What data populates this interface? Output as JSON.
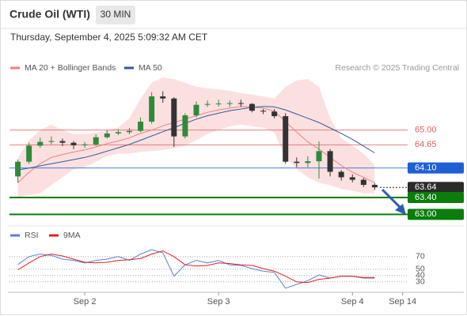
{
  "header": {
    "title": "Crude Oil (WTI)",
    "timeframe": "30 MIN",
    "timestamp": "Thursday, September 4, 2025 5:09:32 AM CET",
    "credit": "Research © 2025 Trading Central"
  },
  "chart_data": [
    {
      "type": "candlestick",
      "x": [
        -12,
        -10,
        -8,
        -6,
        -4,
        -2,
        0,
        2,
        4,
        6,
        8,
        10,
        12,
        14,
        16,
        18,
        20,
        22,
        24,
        26,
        28,
        30,
        32,
        34,
        36,
        38,
        40,
        42,
        44,
        46,
        48,
        50,
        52
      ],
      "open": [
        63.9,
        64.25,
        64.63,
        64.72,
        64.74,
        64.7,
        64.64,
        64.66,
        64.83,
        64.92,
        64.95,
        64.98,
        65.2,
        65.8,
        65.75,
        64.85,
        65.35,
        65.6,
        65.62,
        65.63,
        65.64,
        65.62,
        65.46,
        65.44,
        65.33,
        64.25,
        64.22,
        64.26,
        64.5,
        64.01,
        63.88,
        63.82,
        63.7
      ],
      "high": [
        64.3,
        64.7,
        64.82,
        64.85,
        64.8,
        64.74,
        64.72,
        64.9,
        65.0,
        65.02,
        65.05,
        65.3,
        65.9,
        65.92,
        65.78,
        65.4,
        65.68,
        65.7,
        65.72,
        65.7,
        65.72,
        65.64,
        65.5,
        65.5,
        65.4,
        64.35,
        64.38,
        64.73,
        64.55,
        64.05,
        63.95,
        63.86,
        63.74
      ],
      "low": [
        63.75,
        64.2,
        64.58,
        64.66,
        64.62,
        64.55,
        64.58,
        64.62,
        64.8,
        64.88,
        64.9,
        64.95,
        65.15,
        65.65,
        64.6,
        64.8,
        65.3,
        65.55,
        65.56,
        65.55,
        65.55,
        65.42,
        65.38,
        65.28,
        64.2,
        64.12,
        64.12,
        63.85,
        63.9,
        63.8,
        63.76,
        63.65,
        63.58
      ],
      "close": [
        64.25,
        64.63,
        64.72,
        64.74,
        64.7,
        64.64,
        64.66,
        64.83,
        64.92,
        64.95,
        64.98,
        65.2,
        65.8,
        65.75,
        64.85,
        65.35,
        65.6,
        65.62,
        65.63,
        65.64,
        65.62,
        65.46,
        65.44,
        65.33,
        64.25,
        64.22,
        64.26,
        64.5,
        64.01,
        63.88,
        63.82,
        63.7,
        63.64
      ],
      "up_color": "#2e8b3a",
      "down_color": "#333333",
      "series": [
        {
          "name": "MA 20 + Bollinger Bands",
          "color": "#f08080",
          "band_color": "#fbd5d5",
          "values": [
            63.75,
            64.0,
            64.2,
            64.35,
            64.42,
            64.48,
            64.53,
            64.6,
            64.68,
            64.74,
            64.82,
            64.92,
            65.0,
            65.1,
            65.18,
            65.26,
            65.34,
            65.42,
            65.48,
            65.52,
            65.56,
            65.55,
            65.52,
            65.45,
            65.2,
            64.95,
            64.72,
            64.55,
            64.35,
            64.16,
            64.0,
            63.88,
            63.75
          ],
          "band_upper": [
            64.35,
            64.76,
            65.0,
            65.13,
            65.0,
            64.91,
            64.91,
            64.94,
            65.0,
            65.06,
            65.28,
            65.75,
            66.12,
            66.25,
            66.21,
            66.12,
            66.03,
            65.99,
            65.97,
            65.93,
            65.88,
            65.84,
            65.8,
            65.75,
            66.03,
            66.18,
            66.21,
            66.03,
            65.28,
            64.81,
            64.63,
            64.44,
            64.16
          ],
          "band_lower": [
            63.41,
            63.45,
            63.5,
            63.69,
            63.88,
            64.07,
            64.12,
            64.25,
            64.38,
            64.44,
            64.44,
            64.48,
            64.5,
            64.53,
            64.57,
            64.63,
            64.76,
            64.91,
            65.0,
            65.09,
            65.13,
            65.09,
            65.06,
            64.94,
            64.35,
            64.07,
            63.88,
            63.75,
            63.69,
            63.6,
            63.56,
            63.5,
            63.5
          ]
        },
        {
          "name": "MA 50",
          "color": "#2d5a9e",
          "values": [
            64.05,
            64.1,
            64.15,
            64.2,
            64.25,
            64.3,
            64.35,
            64.42,
            64.5,
            64.58,
            64.66,
            64.76,
            64.86,
            64.96,
            65.06,
            65.16,
            65.26,
            65.34,
            65.4,
            65.46,
            65.5,
            65.54,
            65.56,
            65.55,
            65.48,
            65.38,
            65.28,
            65.18,
            65.05,
            64.92,
            64.78,
            64.62,
            64.46
          ]
        }
      ],
      "levels": [
        {
          "value": 65,
          "label": "65.00",
          "color": "#e06060",
          "badge": false,
          "line": "thin"
        },
        {
          "value": 64.65,
          "label": "64.65",
          "color": "#e06060",
          "badge": false,
          "line": "thin"
        },
        {
          "value": 64.1,
          "label": "64.10",
          "color": "#1f5fd6",
          "badge": true,
          "line": "thin"
        },
        {
          "value": 63.64,
          "label": "63.64",
          "color": "#2b2b2b",
          "badge": true,
          "line": "dotted"
        },
        {
          "value": 63.4,
          "label": "63.40",
          "color": "#0a7d0a",
          "badge": true,
          "line": "thick"
        },
        {
          "value": 63,
          "label": "63.00",
          "color": "#0a7d0a",
          "badge": true,
          "line": "thick"
        }
      ],
      "xlim": [
        -13.5,
        57.9
      ],
      "ylim": [
        62.8,
        66.4
      ]
    },
    {
      "type": "line",
      "x": [
        -12,
        -10,
        -8,
        -6,
        -4,
        -2,
        0,
        2,
        4,
        6,
        8,
        10,
        12,
        14,
        16,
        18,
        20,
        22,
        24,
        26,
        28,
        30,
        32,
        34,
        36,
        38,
        40,
        42,
        44,
        46,
        48,
        50,
        52
      ],
      "series": [
        {
          "name": "RSI",
          "color": "#5b7fd6",
          "values": [
            57.5,
            70,
            74,
            72,
            66,
            64,
            60,
            64,
            66,
            70,
            64,
            74,
            81,
            76,
            39,
            57,
            64,
            60,
            64,
            57,
            56,
            51,
            47,
            45,
            20,
            26,
            32,
            41,
            36,
            39,
            39,
            36,
            36
          ]
        },
        {
          "name": "9MA",
          "color": "#e02020",
          "values": [
            49,
            60,
            70,
            74,
            71,
            66,
            61,
            60,
            61,
            64,
            65,
            67,
            74,
            79,
            70,
            57,
            55,
            56,
            60,
            59,
            57,
            56,
            51,
            47,
            39,
            30,
            29,
            34,
            36,
            39,
            39,
            37,
            37
          ]
        }
      ],
      "xlim": [
        -13.5,
        57.9
      ],
      "ylim": [
        11,
        86
      ],
      "yticks": [
        30,
        40,
        50,
        70
      ],
      "xticks": [
        {
          "value": 0,
          "label": "Sep 2"
        },
        {
          "value": 24,
          "label": "Sep 3"
        },
        {
          "value": 48,
          "label": "Sep 4"
        },
        {
          "value": 57,
          "label": "Sep 14"
        }
      ]
    }
  ]
}
